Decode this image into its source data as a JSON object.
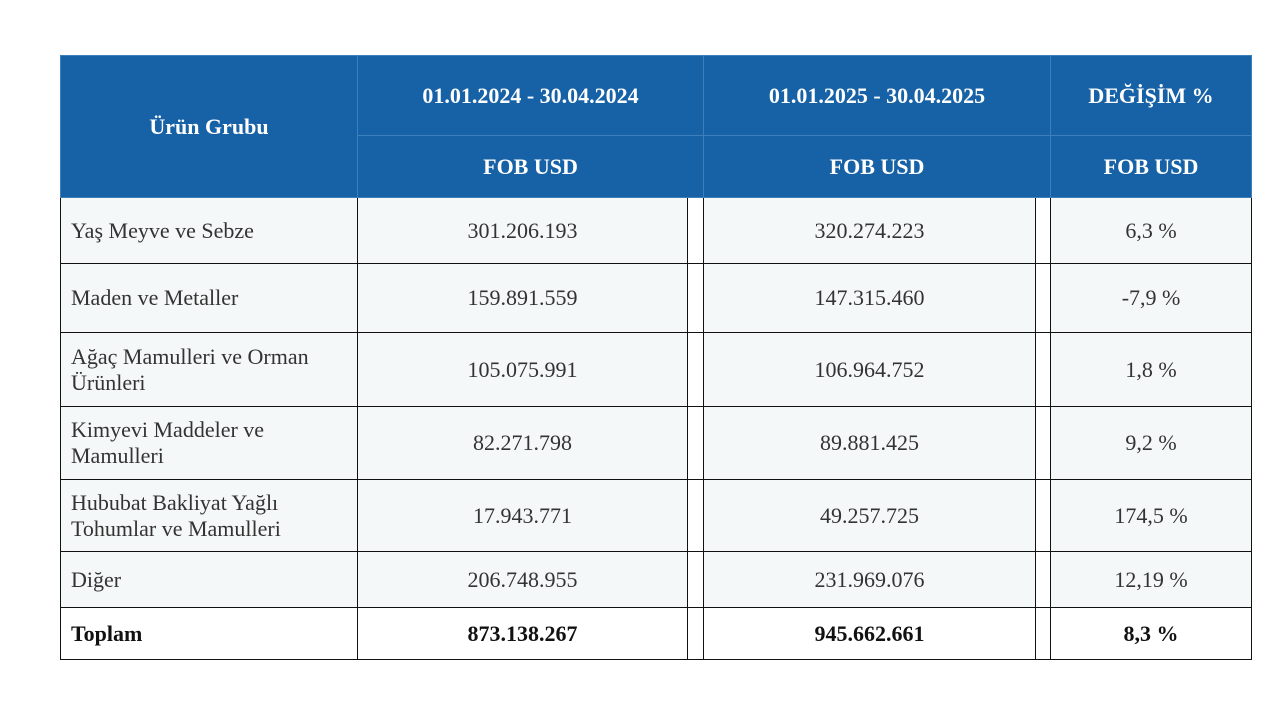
{
  "table": {
    "header": {
      "group": "Ürün Grubu",
      "periods": [
        "01.01.2024 - 30.04.2024",
        "01.01.2025 - 30.04.2025"
      ],
      "change": "DEĞİŞİM %",
      "units": [
        "FOB USD",
        "FOB USD",
        "FOB USD"
      ]
    },
    "rows": [
      [
        "Yaş Meyve ve Sebze",
        "301.206.193",
        "320.274.223",
        "6,3 %"
      ],
      [
        "Maden ve Metaller",
        "159.891.559",
        "147.315.460",
        "-7,9 %"
      ],
      [
        "Ağaç Mamulleri ve Orman Ürünleri",
        "105.075.991",
        "106.964.752",
        "1,8 %"
      ],
      [
        "Kimyevi Maddeler ve Mamulleri",
        "82.271.798",
        "89.881.425",
        "9,2 %"
      ],
      [
        "Hububat Bakliyat Yağlı Tohumlar ve Mamulleri",
        "17.943.771",
        "49.257.725",
        "174,5 %"
      ],
      [
        "Diğer",
        "206.748.955",
        "231.969.076",
        "12,19 %"
      ]
    ],
    "total": [
      "Toplam",
      "873.138.267",
      "945.662.661",
      "8,3 %"
    ]
  }
}
